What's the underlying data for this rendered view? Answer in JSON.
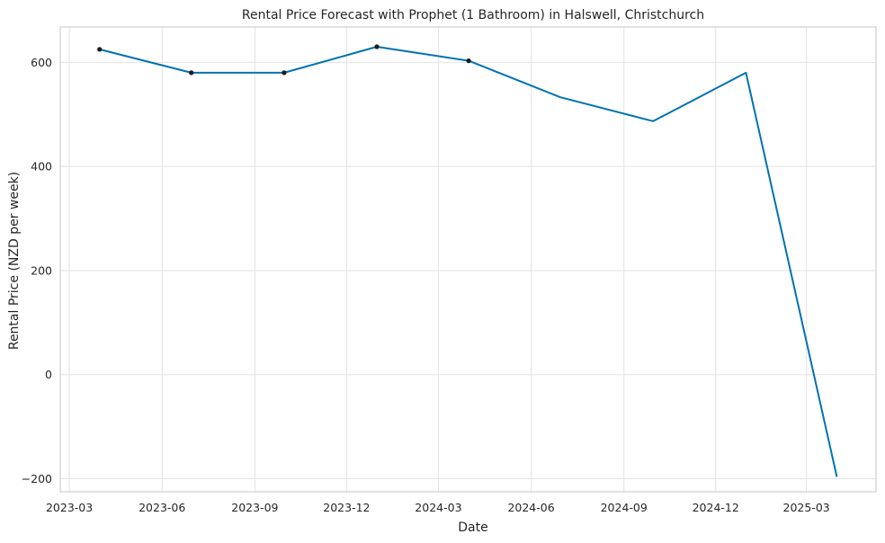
{
  "chart_data": {
    "type": "line",
    "title": "Rental Price Forecast with Prophet (1 Bathroom) in Halswell, Christchurch",
    "xlabel": "Date",
    "ylabel": "Rental Price (NZD per week)",
    "ylim": [
      -225,
      668
    ],
    "xlim": [
      "2023-02-20",
      "2025-05-09"
    ],
    "grid": true,
    "x_ticks": [
      "2023-03",
      "2023-06",
      "2023-09",
      "2023-12",
      "2024-03",
      "2024-06",
      "2024-09",
      "2024-12",
      "2025-03"
    ],
    "y_ticks": [
      -200,
      0,
      200,
      400,
      600
    ],
    "colors": {
      "forecast_line": "#0072B2",
      "observed_points": "#1a1a1a"
    },
    "series": [
      {
        "kind": "forecast",
        "x": [
          "2023-03-31",
          "2023-06-30",
          "2023-09-30",
          "2023-12-31",
          "2024-03-31",
          "2024-06-30",
          "2024-09-30",
          "2024-12-31",
          "2025-03-31"
        ],
        "y": [
          625,
          580,
          580,
          630,
          603,
          533,
          487,
          580,
          -195
        ]
      },
      {
        "kind": "observed",
        "x": [
          "2023-03-31",
          "2023-06-30",
          "2023-09-30",
          "2023-12-31",
          "2024-03-31"
        ],
        "y": [
          625,
          580,
          580,
          630,
          603
        ]
      }
    ]
  }
}
